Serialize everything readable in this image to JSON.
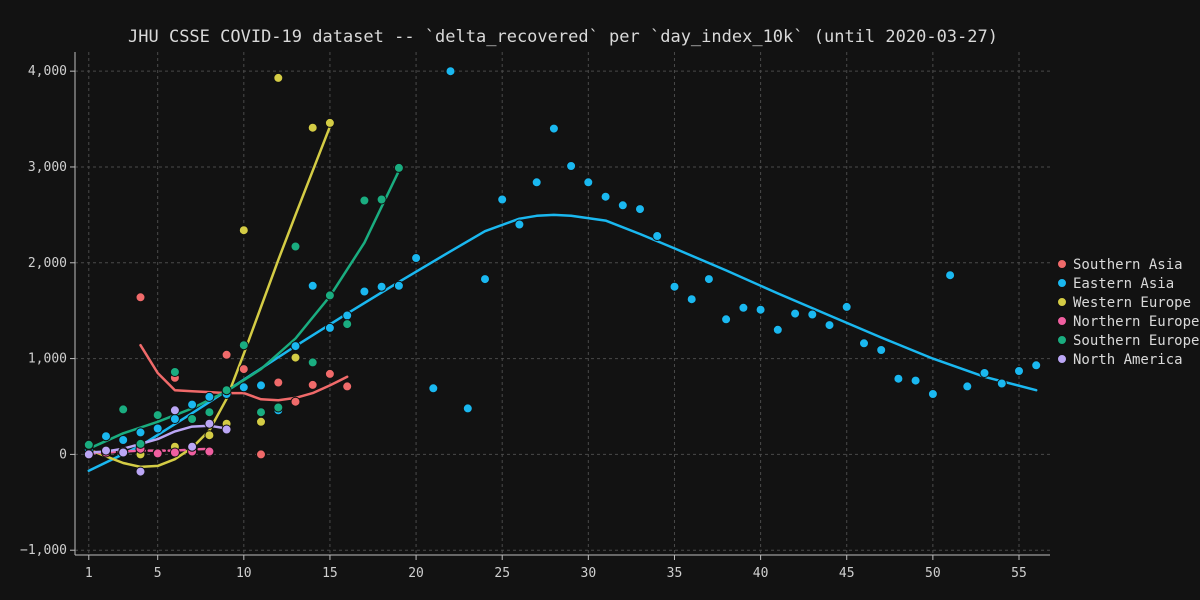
{
  "chart_data": {
    "type": "scatter",
    "title": "JHU CSSE COVID-19 dataset -- `delta_recovered` per `day_index_10k` (until 2020-03-27)",
    "xlabel": "",
    "ylabel": "",
    "xlim": [
      0.2,
      56.8
    ],
    "ylim": [
      -1050,
      4200
    ],
    "xticks": [
      1,
      5,
      10,
      15,
      20,
      25,
      30,
      35,
      40,
      45,
      50,
      55
    ],
    "yticks": [
      -1000,
      0,
      1000,
      2000,
      3000,
      4000
    ],
    "ytick_labels": [
      "−1,000",
      "0",
      "1,000",
      "2,000",
      "3,000",
      "4,000"
    ],
    "grid": true,
    "legend_position": "right",
    "series": [
      {
        "name": "Southern Asia",
        "color": "#f06a6a",
        "points": [
          [
            4,
            1640
          ],
          [
            6,
            800
          ],
          [
            8,
            20
          ],
          [
            9,
            1040
          ],
          [
            10,
            890
          ],
          [
            11,
            0
          ],
          [
            12,
            750
          ],
          [
            13,
            550
          ],
          [
            14,
            725
          ],
          [
            15,
            840
          ],
          [
            16,
            710
          ]
        ],
        "trend": [
          [
            4,
            1140
          ],
          [
            5,
            850
          ],
          [
            6,
            670
          ],
          [
            7,
            660
          ],
          [
            8,
            650
          ],
          [
            9,
            640
          ],
          [
            10,
            640
          ],
          [
            11,
            575
          ],
          [
            12,
            565
          ],
          [
            13,
            590
          ],
          [
            14,
            640
          ],
          [
            15,
            720
          ],
          [
            16,
            810
          ]
        ]
      },
      {
        "name": "Eastern Asia",
        "color": "#1ab8f0",
        "points": [
          [
            1,
            50
          ],
          [
            2,
            190
          ],
          [
            3,
            150
          ],
          [
            4,
            230
          ],
          [
            5,
            270
          ],
          [
            6,
            370
          ],
          [
            7,
            520
          ],
          [
            8,
            600
          ],
          [
            9,
            630
          ],
          [
            10,
            700
          ],
          [
            11,
            720
          ],
          [
            12,
            460
          ],
          [
            13,
            1130
          ],
          [
            14,
            1760
          ],
          [
            15,
            1320
          ],
          [
            16,
            1450
          ],
          [
            17,
            1700
          ],
          [
            18,
            1750
          ],
          [
            19,
            1760
          ],
          [
            20,
            2050
          ],
          [
            21,
            690
          ],
          [
            22,
            4000
          ],
          [
            23,
            480
          ],
          [
            24,
            1830
          ],
          [
            25,
            2660
          ],
          [
            26,
            2400
          ],
          [
            27,
            2840
          ],
          [
            28,
            3400
          ],
          [
            29,
            3010
          ],
          [
            30,
            2840
          ],
          [
            31,
            2690
          ],
          [
            32,
            2600
          ],
          [
            33,
            2560
          ],
          [
            34,
            2280
          ],
          [
            35,
            1750
          ],
          [
            36,
            1620
          ],
          [
            37,
            1830
          ],
          [
            38,
            1410
          ],
          [
            39,
            1530
          ],
          [
            40,
            1510
          ],
          [
            41,
            1300
          ],
          [
            42,
            1470
          ],
          [
            43,
            1460
          ],
          [
            44,
            1350
          ],
          [
            45,
            1540
          ],
          [
            46,
            1160
          ],
          [
            47,
            1090
          ],
          [
            48,
            790
          ],
          [
            49,
            770
          ],
          [
            50,
            630
          ],
          [
            51,
            1870
          ],
          [
            52,
            710
          ],
          [
            53,
            850
          ],
          [
            54,
            740
          ],
          [
            55,
            870
          ],
          [
            56,
            930
          ]
        ],
        "trend": [
          [
            1,
            -170
          ],
          [
            4,
            90
          ],
          [
            7,
            430
          ],
          [
            10,
            780
          ],
          [
            13,
            1130
          ],
          [
            16,
            1470
          ],
          [
            19,
            1800
          ],
          [
            22,
            2120
          ],
          [
            24,
            2330
          ],
          [
            26,
            2460
          ],
          [
            27,
            2490
          ],
          [
            28,
            2500
          ],
          [
            29,
            2490
          ],
          [
            31,
            2440
          ],
          [
            33,
            2300
          ],
          [
            35,
            2150
          ],
          [
            38,
            1920
          ],
          [
            41,
            1680
          ],
          [
            44,
            1450
          ],
          [
            47,
            1220
          ],
          [
            50,
            1000
          ],
          [
            53,
            810
          ],
          [
            56,
            670
          ]
        ]
      },
      {
        "name": "Western Europe",
        "color": "#d4cc45",
        "points": [
          [
            1,
            90
          ],
          [
            2,
            40
          ],
          [
            3,
            20
          ],
          [
            4,
            0
          ],
          [
            5,
            20
          ],
          [
            6,
            80
          ],
          [
            7,
            60
          ],
          [
            8,
            200
          ],
          [
            9,
            320
          ],
          [
            10,
            2340
          ],
          [
            11,
            340
          ],
          [
            12,
            3930
          ],
          [
            13,
            1010
          ],
          [
            14,
            3410
          ],
          [
            15,
            3460
          ]
        ],
        "trend": [
          [
            1,
            50
          ],
          [
            2,
            -20
          ],
          [
            3,
            -90
          ],
          [
            4,
            -130
          ],
          [
            5,
            -120
          ],
          [
            6,
            -50
          ],
          [
            7,
            70
          ],
          [
            8,
            250
          ],
          [
            9,
            580
          ],
          [
            10,
            1050
          ],
          [
            11,
            1540
          ],
          [
            12,
            2030
          ],
          [
            13,
            2500
          ],
          [
            14,
            2960
          ],
          [
            15,
            3420
          ]
        ]
      },
      {
        "name": "Northern Europe",
        "color": "#f05fa0",
        "points": [
          [
            1,
            0
          ],
          [
            2,
            20
          ],
          [
            3,
            30
          ],
          [
            4,
            60
          ],
          [
            5,
            10
          ],
          [
            6,
            20
          ],
          [
            7,
            30
          ],
          [
            8,
            30
          ]
        ],
        "trend": [
          [
            1,
            10
          ],
          [
            2,
            20
          ],
          [
            3,
            30
          ],
          [
            4,
            40
          ],
          [
            5,
            40
          ],
          [
            6,
            40
          ],
          [
            7,
            50
          ],
          [
            8,
            60
          ]
        ]
      },
      {
        "name": "Southern Europe",
        "color": "#1aad80",
        "points": [
          [
            1,
            100
          ],
          [
            3,
            470
          ],
          [
            4,
            110
          ],
          [
            5,
            410
          ],
          [
            6,
            860
          ],
          [
            7,
            370
          ],
          [
            8,
            440
          ],
          [
            9,
            670
          ],
          [
            10,
            1140
          ],
          [
            11,
            440
          ],
          [
            12,
            490
          ],
          [
            13,
            2170
          ],
          [
            14,
            960
          ],
          [
            15,
            1660
          ],
          [
            16,
            1360
          ],
          [
            17,
            2650
          ],
          [
            18,
            2660
          ],
          [
            19,
            2990
          ]
        ],
        "trend": [
          [
            1,
            60
          ],
          [
            3,
            220
          ],
          [
            5,
            340
          ],
          [
            7,
            480
          ],
          [
            9,
            660
          ],
          [
            11,
            890
          ],
          [
            13,
            1210
          ],
          [
            15,
            1650
          ],
          [
            17,
            2210
          ],
          [
            19,
            2960
          ]
        ]
      },
      {
        "name": "North America",
        "color": "#bba6f5",
        "points": [
          [
            1,
            0
          ],
          [
            2,
            40
          ],
          [
            3,
            20
          ],
          [
            4,
            -180
          ],
          [
            6,
            460
          ],
          [
            7,
            80
          ],
          [
            8,
            320
          ],
          [
            9,
            260
          ]
        ],
        "trend": [
          [
            1,
            20
          ],
          [
            2,
            30
          ],
          [
            3,
            60
          ],
          [
            4,
            110
          ],
          [
            5,
            160
          ],
          [
            6,
            240
          ],
          [
            7,
            290
          ],
          [
            8,
            300
          ],
          [
            9,
            270
          ]
        ]
      }
    ]
  }
}
